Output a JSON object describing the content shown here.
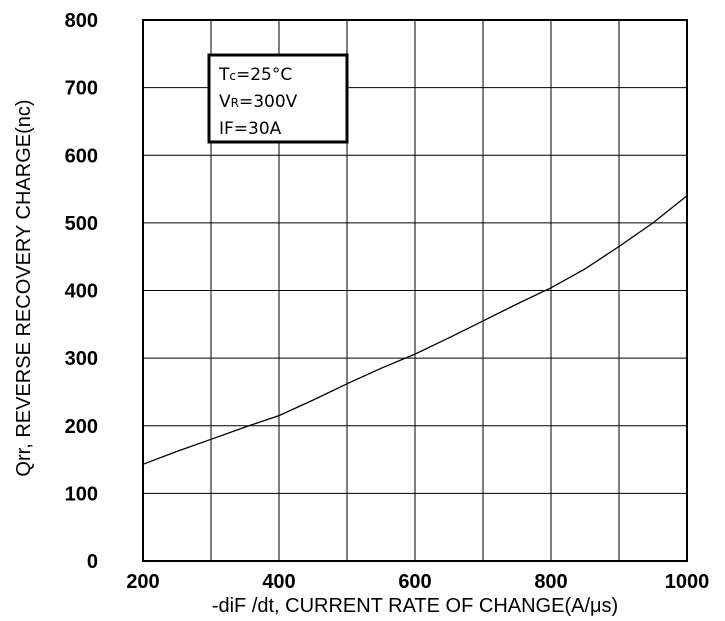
{
  "chart_data": {
    "type": "line",
    "title": "",
    "xlabel": "-diF /dt, CURRENT RATE OF CHANGE(A/μs)",
    "ylabel": "Qrr, REVERSE RECOVERY CHARGE(nc)",
    "xlim": [
      200,
      1000
    ],
    "ylim": [
      0,
      800
    ],
    "x_ticks": [
      "200",
      "400",
      "600",
      "800",
      "1000"
    ],
    "y_ticks": [
      "0",
      "100",
      "200",
      "300",
      "400",
      "500",
      "600",
      "700",
      "800"
    ],
    "grid": true,
    "series": [
      {
        "x": [
          200,
          250,
          300,
          350,
          400,
          450,
          500,
          550,
          600,
          650,
          700,
          750,
          800,
          850,
          900,
          950,
          1000
        ],
        "y": [
          143,
          162,
          180,
          198,
          215,
          238,
          262,
          285,
          306,
          330,
          355,
          380,
          404,
          432,
          465,
          500,
          540
        ]
      }
    ],
    "conditions": {
      "tc": {
        "main": "T",
        "sub": "c",
        "value": "=25°C"
      },
      "vr": {
        "main": "V",
        "sub": "R",
        "value": "=300V"
      },
      "if": {
        "main": "IF",
        "value": "=30A"
      }
    },
    "colors": {
      "line": "#000000",
      "grid": "#000000"
    }
  }
}
